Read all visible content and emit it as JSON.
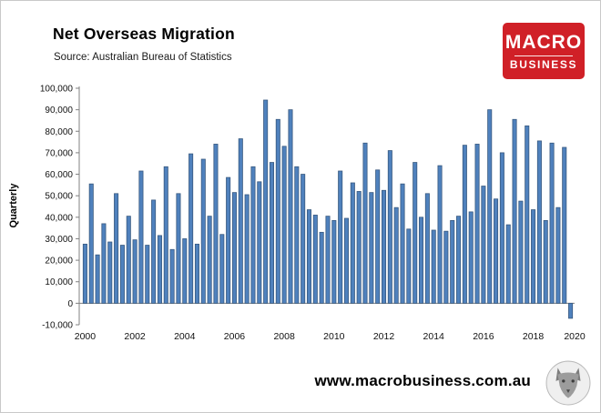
{
  "header": {
    "title": "Net Overseas Migration",
    "source": "Source: Australian Bureau of Statistics",
    "logo": {
      "line1": "MACRO",
      "line2": "BUSINESS",
      "bg_color": "#d02027",
      "text_color": "#ffffff"
    }
  },
  "footer": {
    "url": "www.macrobusiness.com.au"
  },
  "chart_data": {
    "type": "bar",
    "title": "Net Overseas Migration",
    "subtitle": "Source: Australian Bureau of Statistics",
    "ylabel": "Quarterly",
    "xlabel": "",
    "ylim": [
      -10000,
      100000
    ],
    "y_tick_step": 10000,
    "y_tick_labels": [
      "100,000",
      "90,000",
      "80,000",
      "70,000",
      "60,000",
      "50,000",
      "40,000",
      "30,000",
      "20,000",
      "10,000",
      "0",
      "-10,000"
    ],
    "x_tick_labels": [
      "2000",
      "2002",
      "2004",
      "2006",
      "2008",
      "2010",
      "2012",
      "2014",
      "2016",
      "2018",
      "2020"
    ],
    "frequency": "quarterly",
    "period_start": "2000 Q1",
    "values": [
      27500,
      55500,
      22500,
      37000,
      28500,
      51000,
      27000,
      40500,
      29500,
      61500,
      27000,
      48000,
      31500,
      63500,
      25000,
      51000,
      30000,
      69500,
      27500,
      67000,
      40500,
      74000,
      32000,
      58500,
      51500,
      76500,
      50500,
      63500,
      56500,
      94500,
      65500,
      85500,
      73000,
      90000,
      63500,
      60000,
      43500,
      41000,
      33000,
      40500,
      38500,
      61500,
      39500,
      56000,
      52000,
      74500,
      51500,
      62000,
      52500,
      71000,
      44500,
      55500,
      34500,
      65500,
      40000,
      51000,
      34000,
      64000,
      33500,
      38500,
      40500,
      73500,
      42500,
      74000,
      54500,
      90000,
      48500,
      70000,
      36500,
      85500,
      47500,
      82500,
      43500,
      75500,
      38500,
      74500,
      44500,
      72500,
      -7000
    ],
    "bar_fill": "#4f81bd",
    "bar_stroke": "#38597f",
    "axis_color": "#808080",
    "grid": false,
    "legend": false
  }
}
